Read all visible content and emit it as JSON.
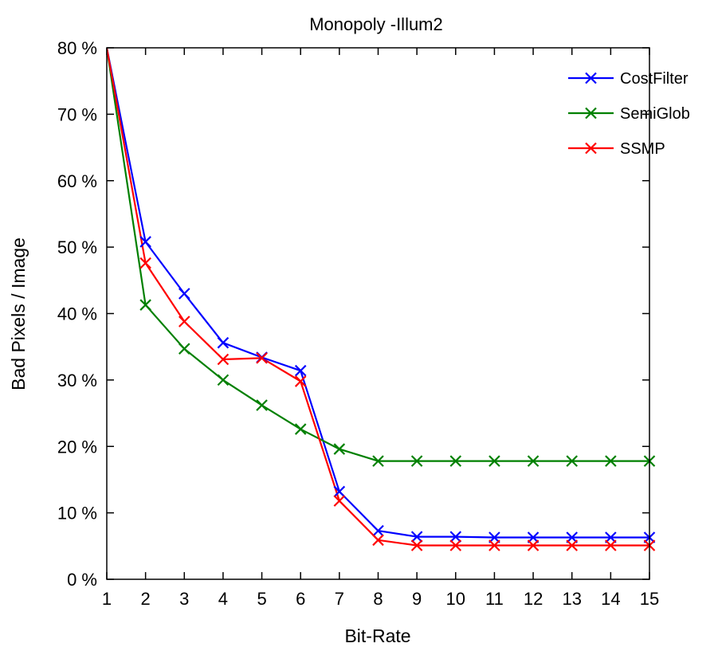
{
  "chart_data": {
    "type": "line",
    "title": "Monopoly -Illum2",
    "xlabel": "Bit-Rate",
    "ylabel": "Bad Pixels / Image",
    "xlim": [
      1,
      15
    ],
    "ylim": [
      0,
      80
    ],
    "x_ticks": [
      1,
      2,
      3,
      4,
      5,
      6,
      7,
      8,
      9,
      10,
      11,
      12,
      13,
      14,
      15
    ],
    "y_ticks": [
      0,
      10,
      20,
      30,
      40,
      50,
      60,
      70,
      80
    ],
    "y_tick_labels": [
      "0 %",
      "10 %",
      "20 %",
      "30 %",
      "40 %",
      "50 %",
      "60 %",
      "70 %",
      "80 %"
    ],
    "grid": false,
    "legend_position": "top-right",
    "marker": "x",
    "series": [
      {
        "name": "CostFilter",
        "color": "#0000ff",
        "x": [
          1,
          2,
          3,
          4,
          5,
          6,
          7,
          8,
          9,
          10,
          11,
          12,
          13,
          14,
          15
        ],
        "y": [
          80,
          50.8,
          43,
          35.6,
          33.4,
          31.4,
          13.2,
          7.3,
          6.4,
          6.4,
          6.3,
          6.3,
          6.3,
          6.3,
          6.3
        ]
      },
      {
        "name": "SemiGlob",
        "color": "#008000",
        "x": [
          1,
          2,
          3,
          4,
          5,
          6,
          7,
          8,
          9,
          10,
          11,
          12,
          13,
          14,
          15
        ],
        "y": [
          80,
          41.3,
          34.7,
          30,
          26.2,
          22.6,
          19.6,
          17.8,
          17.8,
          17.8,
          17.8,
          17.8,
          17.8,
          17.8,
          17.8
        ]
      },
      {
        "name": "SSMP",
        "color": "#ff0000",
        "x": [
          1,
          2,
          3,
          4,
          5,
          6,
          7,
          8,
          9,
          10,
          11,
          12,
          13,
          14,
          15
        ],
        "y": [
          80,
          47.6,
          38.8,
          33.1,
          33.3,
          29.8,
          11.8,
          5.9,
          5.1,
          5.1,
          5.1,
          5.1,
          5.1,
          5.1,
          5.1
        ]
      }
    ]
  }
}
